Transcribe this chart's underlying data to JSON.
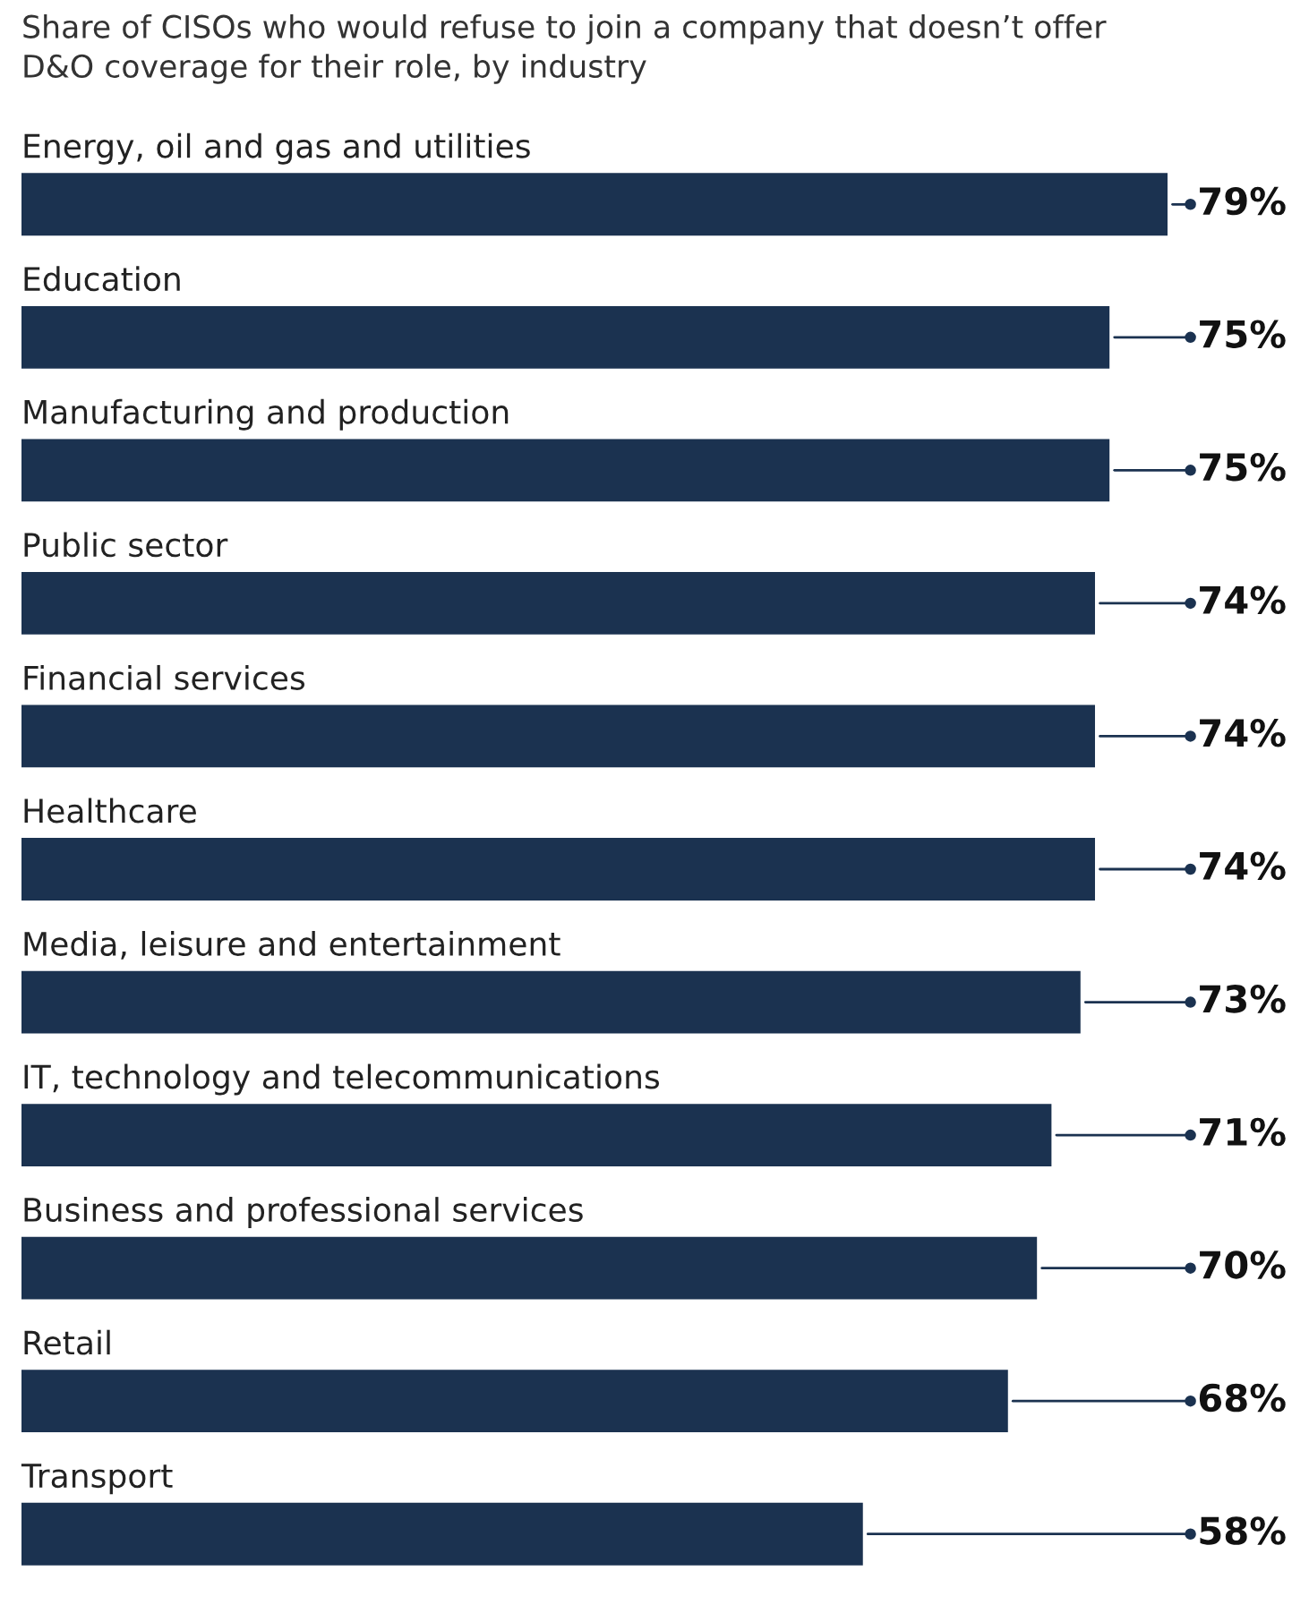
{
  "chart_data": {
    "type": "bar",
    "orientation": "horizontal",
    "title": "Share of CISOs who would refuse to join a company that doesn’t offer\nD&O coverage for their role, by industry",
    "categories": [
      "Energy, oil and gas and utilities",
      "Education",
      "Manufacturing and production",
      "Public sector",
      "Financial services",
      "Healthcare",
      "Media, leisure and entertainment",
      "IT, technology and telecommunications",
      "Business and professional services",
      "Retail",
      "Transport"
    ],
    "values": [
      79,
      75,
      75,
      74,
      74,
      74,
      73,
      71,
      70,
      68,
      58
    ],
    "value_labels": [
      "79%",
      "75%",
      "75%",
      "74%",
      "74%",
      "74%",
      "73%",
      "71%",
      "70%",
      "68%",
      "58%"
    ],
    "color": "#1b3250",
    "legend": false
  }
}
